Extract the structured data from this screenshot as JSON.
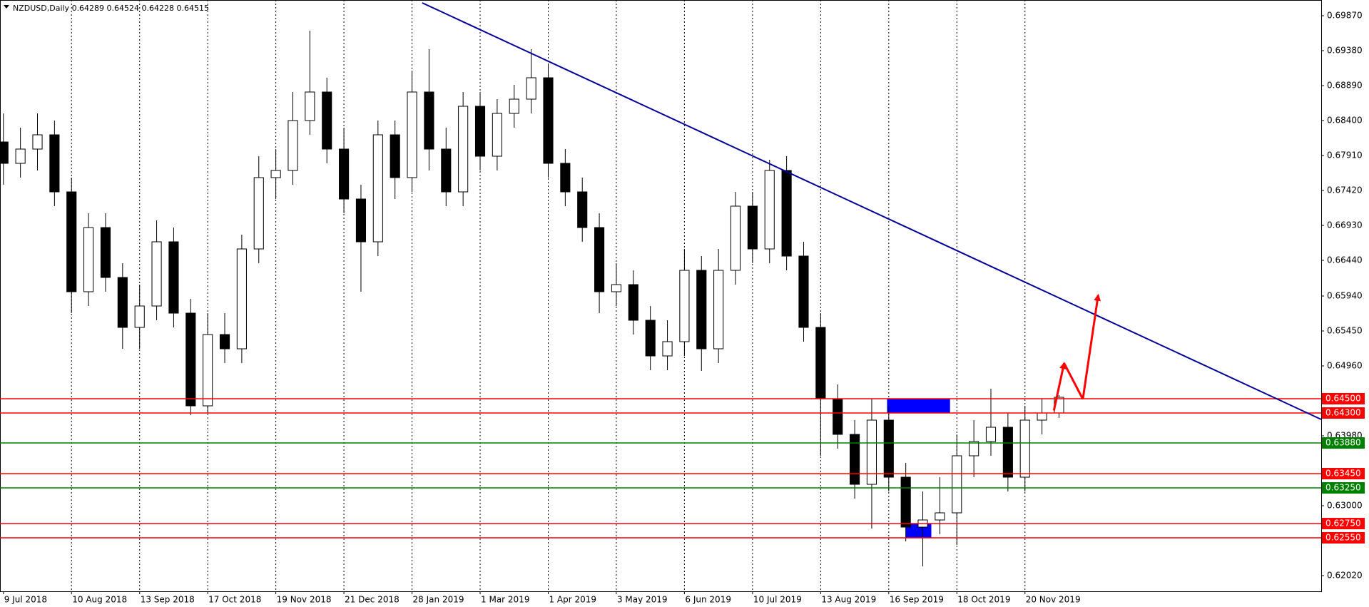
{
  "chart_data": {
    "type": "candlestick",
    "title": "NZDUSD,Daily  0.64289 0.64524 0.64228 0.64515",
    "categories": [
      "9 Jul 2018",
      null,
      null,
      null,
      "10 Aug 2018",
      null,
      null,
      null,
      "13 Sep 2018",
      null,
      null,
      null,
      "17 Oct 2018",
      null,
      null,
      null,
      "19 Nov 2018",
      null,
      null,
      null,
      "21 Dec 2018",
      null,
      null,
      null,
      "28 Jan 2019",
      null,
      null,
      null,
      "1 Mar 2019",
      null,
      null,
      null,
      "1 Apr 2019",
      null,
      null,
      null,
      "3 May 2019",
      null,
      null,
      null,
      "6 Jun 2019",
      null,
      null,
      null,
      "10 Jul 2019",
      null,
      null,
      null,
      "13 Aug 2019",
      null,
      null,
      null,
      "16 Sep 2019",
      null,
      null,
      null,
      "18 Oct 2019",
      null,
      null,
      null,
      "20 Nov 2019",
      null,
      null
    ],
    "open": [
      0.681,
      0.678,
      0.68,
      0.682,
      0.674,
      0.66,
      0.669,
      0.662,
      0.655,
      0.658,
      0.667,
      0.657,
      0.644,
      0.654,
      0.652,
      0.666,
      0.676,
      0.677,
      0.684,
      0.688,
      0.68,
      0.673,
      0.667,
      0.682,
      0.676,
      0.688,
      0.68,
      0.674,
      0.686,
      0.679,
      0.685,
      0.687,
      0.69,
      0.678,
      0.674,
      0.669,
      0.66,
      0.661,
      0.656,
      0.651,
      0.653,
      0.663,
      0.652,
      0.663,
      0.672,
      0.666,
      0.677,
      0.665,
      0.655,
      0.645,
      0.64,
      0.633,
      0.642,
      0.634,
      0.627,
      0.628,
      0.629,
      0.637,
      0.639,
      0.641,
      0.634,
      0.642,
      0.643
    ],
    "high": [
      0.685,
      0.683,
      0.685,
      0.684,
      0.676,
      0.671,
      0.671,
      0.664,
      0.661,
      0.67,
      0.669,
      0.659,
      0.657,
      0.657,
      0.668,
      0.679,
      0.68,
      0.688,
      0.6966,
      0.69,
      0.683,
      0.675,
      0.684,
      0.684,
      0.691,
      0.694,
      0.683,
      0.688,
      0.688,
      0.687,
      0.689,
      0.694,
      0.692,
      0.68,
      0.676,
      0.671,
      0.664,
      0.663,
      0.658,
      0.656,
      0.666,
      0.665,
      0.666,
      0.674,
      0.674,
      0.6785,
      0.679,
      0.667,
      0.657,
      0.647,
      0.642,
      0.645,
      0.644,
      0.636,
      0.632,
      0.634,
      0.64,
      0.642,
      0.6464,
      0.643,
      0.644,
      0.645,
      0.6455
    ],
    "low": [
      0.675,
      0.676,
      0.677,
      0.672,
      0.657,
      0.658,
      0.66,
      0.652,
      0.652,
      0.656,
      0.655,
      0.6427,
      0.643,
      0.65,
      0.65,
      0.664,
      0.673,
      0.675,
      0.682,
      0.678,
      0.671,
      0.66,
      0.665,
      0.673,
      0.674,
      0.677,
      0.672,
      0.672,
      0.677,
      0.677,
      0.683,
      0.685,
      0.676,
      0.672,
      0.667,
      0.657,
      0.658,
      0.654,
      0.649,
      0.649,
      0.651,
      0.6489,
      0.65,
      0.661,
      0.664,
      0.664,
      0.663,
      0.653,
      0.637,
      0.638,
      0.631,
      0.6268,
      0.632,
      0.625,
      0.6215,
      0.626,
      0.6245,
      0.634,
      0.637,
      0.632,
      0.632,
      0.64,
      0.6423
    ],
    "close": [
      0.678,
      0.68,
      0.682,
      0.674,
      0.66,
      0.669,
      0.662,
      0.655,
      0.658,
      0.667,
      0.657,
      0.644,
      0.654,
      0.652,
      0.666,
      0.676,
      0.677,
      0.684,
      0.688,
      0.68,
      0.673,
      0.667,
      0.682,
      0.676,
      0.688,
      0.68,
      0.674,
      0.686,
      0.679,
      0.685,
      0.687,
      0.69,
      0.678,
      0.674,
      0.669,
      0.66,
      0.661,
      0.656,
      0.651,
      0.653,
      0.663,
      0.652,
      0.663,
      0.672,
      0.666,
      0.677,
      0.665,
      0.655,
      0.645,
      0.64,
      0.633,
      0.642,
      0.634,
      0.627,
      0.628,
      0.629,
      0.637,
      0.639,
      0.641,
      0.634,
      0.642,
      0.643,
      0.6452
    ],
    "up_color": "#ffffff",
    "down_color": "#000000",
    "wick_color": "#000000",
    "xlim": [
      -0.2,
      77.4
    ],
    "ylim": [
      0.618,
      0.7009
    ],
    "grid": "vertical",
    "yticks": [
      {
        "value": 0.6987,
        "label": "0.69870"
      },
      {
        "value": 0.6938,
        "label": "0.69380"
      },
      {
        "value": 0.6889,
        "label": "0.68890"
      },
      {
        "value": 0.684,
        "label": "0.68400"
      },
      {
        "value": 0.6791,
        "label": "0.67910"
      },
      {
        "value": 0.6742,
        "label": "0.67420"
      },
      {
        "value": 0.6693,
        "label": "0.66930"
      },
      {
        "value": 0.6644,
        "label": "0.66440"
      },
      {
        "value": 0.6594,
        "label": "0.65940"
      },
      {
        "value": 0.6545,
        "label": "0.65450"
      },
      {
        "value": 0.6496,
        "label": "0.64960"
      },
      {
        "value": 0.6398,
        "label": "0.63980"
      },
      {
        "value": 0.63,
        "label": "0.63000"
      },
      {
        "value": 0.6202,
        "label": "0.62020"
      }
    ],
    "levels": [
      {
        "value": 0.645,
        "label": "0.64500",
        "color": "#ff0000"
      },
      {
        "value": 0.643,
        "label": "0.64300",
        "color": "#ff0000"
      },
      {
        "value": 0.6388,
        "label": "0.63880",
        "color": "#008000"
      },
      {
        "value": 0.6345,
        "label": "0.63450",
        "color": "#ff0000"
      },
      {
        "value": 0.6325,
        "label": "0.63250",
        "color": "#008000"
      },
      {
        "value": 0.6275,
        "label": "0.62750",
        "color": "#ff0000"
      },
      {
        "value": 0.6255,
        "label": "0.62550",
        "color": "#ff0000"
      }
    ],
    "trendline": {
      "x": [
        24.6,
        77.4
      ],
      "y": [
        0.7005,
        0.6421
      ],
      "color": "#000099"
    },
    "zones": [
      {
        "x": [
          51.9,
          55.6
        ],
        "y": [
          0.643,
          0.645
        ]
      },
      {
        "x": [
          53.0,
          54.5
        ],
        "y": [
          0.6255,
          0.6275
        ]
      }
    ],
    "zone_color": "#0000ff",
    "arrow_path": {
      "x": [
        61.7,
        62.3,
        63.4,
        64.3
      ],
      "y": [
        0.64335,
        0.64998,
        0.64494,
        0.65952
      ],
      "color": "#ff0000"
    }
  }
}
